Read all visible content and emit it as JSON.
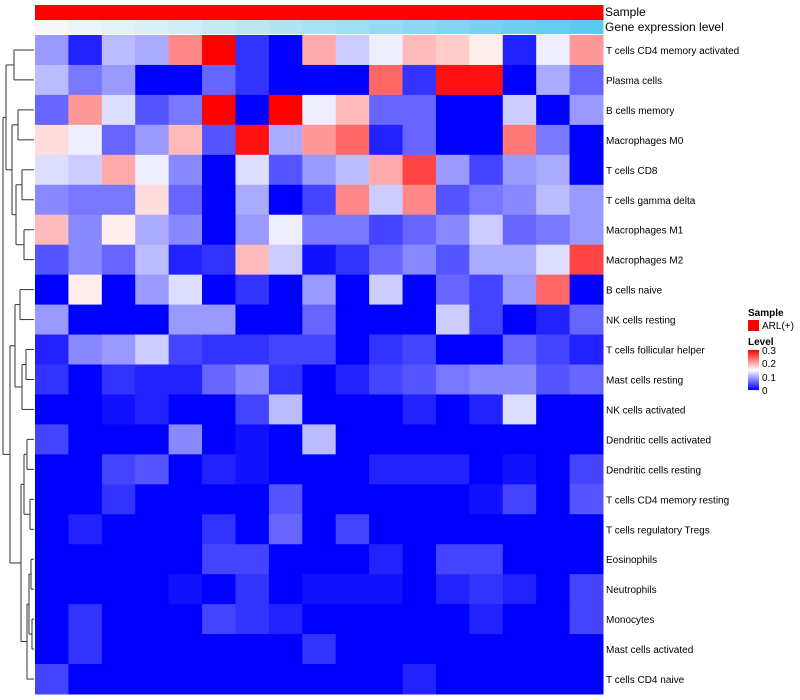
{
  "chart_data": {
    "type": "heatmap",
    "title": "",
    "colorscale": {
      "low_color": "#0000ff",
      "mid_color": "#ffffff",
      "high_color": "#ff0000",
      "range": [
        0,
        0.3
      ],
      "midpoint": 0.15
    },
    "annotations": {
      "sample": {
        "label": "Sample",
        "color": "#ff0000",
        "legend_entry": "ARL(+)"
      },
      "gene_expression": {
        "label": "Gene expression level",
        "low_color": "#f7f7f7",
        "high_color": "#55c8f0",
        "values": [
          0.0,
          0.06,
          0.12,
          0.18,
          0.24,
          0.3,
          0.36,
          0.42,
          0.48,
          0.54,
          0.6,
          0.66,
          0.72,
          0.78,
          0.84,
          0.9,
          0.96
        ]
      }
    },
    "legend": {
      "sample_title": "Sample",
      "level_title": "Level",
      "level_ticks": [
        "0.3",
        "0.2",
        "0.1",
        "0"
      ]
    },
    "rows": [
      "T cells CD4 memory activated",
      "Plasma cells",
      "B cells memory",
      "Macrophages M0",
      "T cells CD8",
      "T cells gamma delta",
      "Macrophages M1",
      "Macrophages M2",
      "B cells naive",
      "NK cells resting",
      "T cells follicular helper",
      "Mast cells resting",
      "NK cells activated",
      "Dendritic cells activated",
      "Dendritic cells resting",
      "T cells CD4 memory resting",
      "T cells regulatory  Tregs",
      "Eosinophils",
      "Neutrophils",
      "Monocytes",
      "Mast cells activated",
      "T cells CD4 naive"
    ],
    "values": [
      [
        0.09,
        0.02,
        0.11,
        0.1,
        0.22,
        0.3,
        0.03,
        0.0,
        0.2,
        0.12,
        0.14,
        0.19,
        0.18,
        0.16,
        0.02,
        0.14,
        0.21
      ],
      [
        0.11,
        0.07,
        0.09,
        0.0,
        0.0,
        0.06,
        0.03,
        0.0,
        0.0,
        0.0,
        0.24,
        0.03,
        0.29,
        0.29,
        0.0,
        0.1,
        0.06
      ],
      [
        0.06,
        0.21,
        0.13,
        0.05,
        0.07,
        0.3,
        0.0,
        0.3,
        0.14,
        0.19,
        0.06,
        0.06,
        0.0,
        0.0,
        0.12,
        0.0,
        0.09
      ],
      [
        0.17,
        0.14,
        0.06,
        0.09,
        0.19,
        0.05,
        0.29,
        0.1,
        0.21,
        0.24,
        0.02,
        0.06,
        0.0,
        0.0,
        0.23,
        0.07,
        0.0
      ],
      [
        0.13,
        0.12,
        0.2,
        0.14,
        0.08,
        0.0,
        0.13,
        0.05,
        0.09,
        0.11,
        0.2,
        0.26,
        0.09,
        0.04,
        0.09,
        0.1,
        0.0
      ],
      [
        0.08,
        0.07,
        0.07,
        0.17,
        0.06,
        0.0,
        0.1,
        0.0,
        0.04,
        0.22,
        0.12,
        0.22,
        0.05,
        0.07,
        0.08,
        0.11,
        0.09
      ],
      [
        0.19,
        0.08,
        0.16,
        0.1,
        0.08,
        0.0,
        0.09,
        0.14,
        0.07,
        0.07,
        0.04,
        0.06,
        0.08,
        0.12,
        0.06,
        0.07,
        0.09
      ],
      [
        0.05,
        0.08,
        0.06,
        0.11,
        0.02,
        0.03,
        0.19,
        0.12,
        0.01,
        0.03,
        0.06,
        0.08,
        0.05,
        0.1,
        0.1,
        0.13,
        0.26
      ],
      [
        0.0,
        0.16,
        0.0,
        0.09,
        0.13,
        0.0,
        0.03,
        0.0,
        0.09,
        0.0,
        0.12,
        0.0,
        0.06,
        0.04,
        0.09,
        0.24,
        0.0
      ],
      [
        0.09,
        0.0,
        0.0,
        0.0,
        0.09,
        0.09,
        0.0,
        0.0,
        0.06,
        0.0,
        0.0,
        0.0,
        0.12,
        0.04,
        0.0,
        0.02,
        0.06
      ],
      [
        0.02,
        0.08,
        0.09,
        0.12,
        0.04,
        0.03,
        0.03,
        0.04,
        0.04,
        0.0,
        0.03,
        0.04,
        0.0,
        0.0,
        0.06,
        0.04,
        0.02
      ],
      [
        0.03,
        0.0,
        0.03,
        0.02,
        0.02,
        0.06,
        0.08,
        0.03,
        0.0,
        0.02,
        0.04,
        0.05,
        0.07,
        0.08,
        0.08,
        0.05,
        0.06
      ],
      [
        0.0,
        0.0,
        0.01,
        0.02,
        0.0,
        0.0,
        0.04,
        0.11,
        0.0,
        0.0,
        0.0,
        0.02,
        0.0,
        0.02,
        0.13,
        0.0,
        0.0
      ],
      [
        0.04,
        0.0,
        0.0,
        0.0,
        0.08,
        0.0,
        0.01,
        0.0,
        0.11,
        0.0,
        0.0,
        0.0,
        0.0,
        0.0,
        0.0,
        0.0,
        0.0
      ],
      [
        0.0,
        0.0,
        0.04,
        0.05,
        0.0,
        0.02,
        0.01,
        0.0,
        0.0,
        0.0,
        0.02,
        0.02,
        0.02,
        0.0,
        0.01,
        0.0,
        0.04
      ],
      [
        0.0,
        0.0,
        0.03,
        0.0,
        0.0,
        0.0,
        0.0,
        0.05,
        0.0,
        0.0,
        0.0,
        0.0,
        0.0,
        0.01,
        0.04,
        0.0,
        0.05
      ],
      [
        0.0,
        0.02,
        0.0,
        0.0,
        0.0,
        0.03,
        0.0,
        0.06,
        0.0,
        0.04,
        0.0,
        0.0,
        0.0,
        0.0,
        0.0,
        0.0,
        0.0
      ],
      [
        0.0,
        0.0,
        0.0,
        0.0,
        0.0,
        0.04,
        0.04,
        0.0,
        0.0,
        0.0,
        0.02,
        0.0,
        0.04,
        0.04,
        0.0,
        0.0,
        0.0
      ],
      [
        0.0,
        0.0,
        0.0,
        0.0,
        0.01,
        0.0,
        0.03,
        0.0,
        0.01,
        0.01,
        0.01,
        0.0,
        0.02,
        0.03,
        0.02,
        0.0,
        0.04
      ],
      [
        0.0,
        0.03,
        0.0,
        0.0,
        0.0,
        0.04,
        0.03,
        0.02,
        0.0,
        0.0,
        0.0,
        0.0,
        0.0,
        0.02,
        0.0,
        0.0,
        0.04
      ],
      [
        0.0,
        0.03,
        0.0,
        0.0,
        0.0,
        0.0,
        0.0,
        0.0,
        0.03,
        0.0,
        0.0,
        0.0,
        0.0,
        0.0,
        0.0,
        0.0,
        0.0
      ],
      [
        0.04,
        0.0,
        0.0,
        0.0,
        0.0,
        0.0,
        0.0,
        0.0,
        0.0,
        0.0,
        0.0,
        0.02,
        0.0,
        0.0,
        0.0,
        0.0,
        0.0
      ]
    ]
  }
}
